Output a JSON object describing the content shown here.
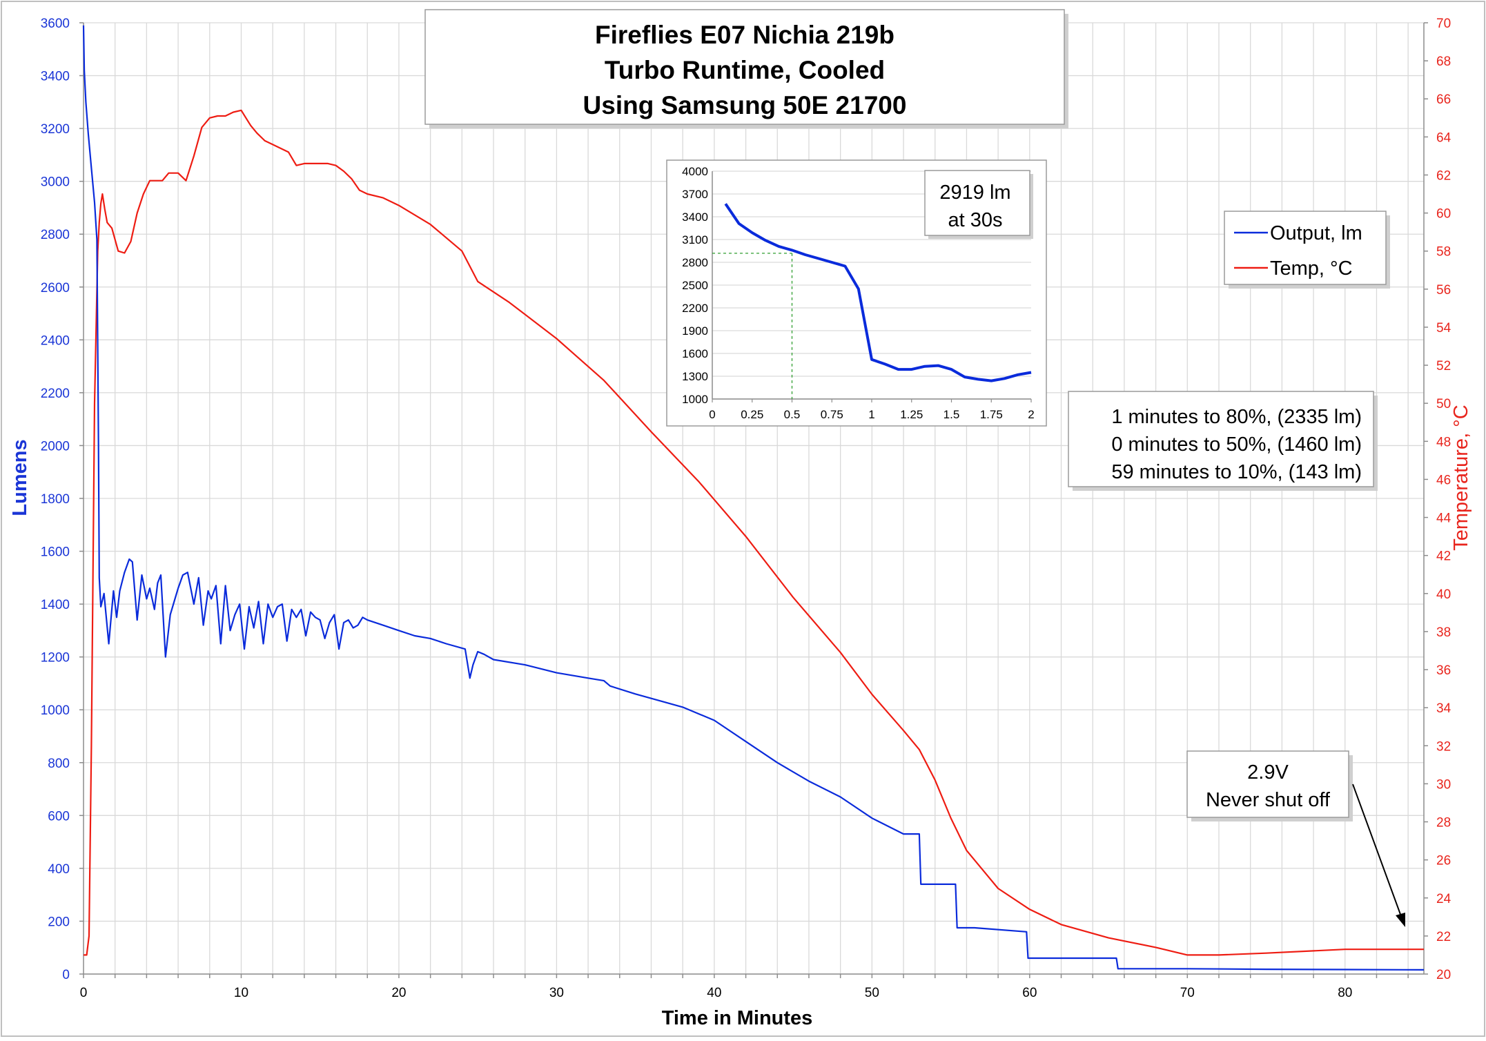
{
  "chart_data": [
    {
      "type": "line",
      "title": [
        "Fireflies E07 Nichia 219b",
        "Turbo Runtime, Cooled",
        "Using Samsung 50E 21700"
      ],
      "xlabel": "Time in Minutes",
      "ylabel": "Lumens",
      "y2label": "Temperature, °C",
      "xlim": [
        0,
        85
      ],
      "ylim": [
        0,
        3600
      ],
      "y2lim": [
        20,
        70
      ],
      "xticks": [
        0,
        10,
        20,
        30,
        40,
        50,
        60,
        70,
        80
      ],
      "yticks": [
        0,
        200,
        400,
        600,
        800,
        1000,
        1200,
        1400,
        1600,
        1800,
        2000,
        2200,
        2400,
        2600,
        2800,
        3000,
        3200,
        3400,
        3600
      ],
      "y2ticks": [
        20,
        22,
        24,
        26,
        28,
        30,
        32,
        34,
        36,
        38,
        40,
        42,
        44,
        46,
        48,
        50,
        52,
        54,
        56,
        58,
        60,
        62,
        64,
        66,
        68,
        70
      ],
      "grid": true,
      "legend_position": "top-right",
      "colors": {
        "output": "#0a2bdb",
        "temp": "#ee1c12",
        "axis_left": "#1a35d6",
        "axis_right": "#e8241c"
      },
      "series": [
        {
          "name": "Output, lm",
          "axis": "left",
          "x": [
            0,
            0.05,
            0.15,
            0.3,
            0.5,
            0.7,
            0.85,
            0.95,
            1.0,
            1.1,
            1.3,
            1.6,
            1.9,
            2.1,
            2.3,
            2.6,
            2.9,
            3.1,
            3.4,
            3.7,
            4.0,
            4.2,
            4.5,
            4.7,
            4.9,
            5.2,
            5.5,
            5.8,
            6.0,
            6.3,
            6.6,
            7.0,
            7.3,
            7.6,
            7.9,
            8.1,
            8.4,
            8.7,
            9.0,
            9.3,
            9.6,
            9.9,
            10.2,
            10.5,
            10.8,
            11.1,
            11.4,
            11.7,
            12.0,
            12.3,
            12.6,
            12.9,
            13.2,
            13.5,
            13.8,
            14.1,
            14.4,
            14.7,
            15.0,
            15.3,
            15.6,
            15.9,
            16.2,
            16.5,
            16.8,
            17.1,
            17.4,
            17.7,
            18.0,
            19,
            20,
            21,
            22,
            23,
            24.2,
            24.5,
            24.7,
            25.0,
            25.4,
            26,
            28,
            30,
            32,
            33.0,
            33.4,
            35,
            38,
            40,
            42,
            44,
            46,
            48,
            50,
            52,
            53.0,
            53.1,
            53.5,
            55.3,
            55.4,
            56.5,
            59.8,
            59.9,
            62,
            65.5,
            65.6,
            70,
            75,
            80,
            85
          ],
          "values": [
            3590,
            3420,
            3300,
            3180,
            3050,
            2920,
            2780,
            2000,
            1500,
            1390,
            1440,
            1250,
            1450,
            1350,
            1450,
            1520,
            1570,
            1560,
            1340,
            1510,
            1420,
            1460,
            1380,
            1480,
            1510,
            1200,
            1360,
            1420,
            1460,
            1510,
            1520,
            1400,
            1500,
            1320,
            1450,
            1420,
            1470,
            1250,
            1470,
            1300,
            1360,
            1400,
            1230,
            1390,
            1310,
            1410,
            1250,
            1400,
            1350,
            1390,
            1400,
            1260,
            1380,
            1350,
            1380,
            1280,
            1370,
            1350,
            1340,
            1270,
            1330,
            1360,
            1230,
            1330,
            1340,
            1310,
            1320,
            1350,
            1340,
            1320,
            1300,
            1280,
            1270,
            1250,
            1230,
            1120,
            1170,
            1220,
            1210,
            1190,
            1170,
            1140,
            1120,
            1110,
            1090,
            1060,
            1010,
            960,
            880,
            800,
            730,
            670,
            590,
            530,
            530,
            340,
            340,
            340,
            175,
            175,
            160,
            60,
            60,
            60,
            20,
            20,
            18,
            17,
            16
          ]
        },
        {
          "name": "Temp, °C",
          "axis": "right",
          "x": [
            0,
            0.2,
            0.35,
            0.5,
            0.7,
            0.9,
            1.0,
            1.1,
            1.2,
            1.35,
            1.5,
            1.8,
            2.2,
            2.6,
            3.0,
            3.4,
            3.8,
            4.2,
            4.6,
            5.0,
            5.4,
            6.0,
            6.5,
            7.0,
            7.5,
            8.0,
            8.5,
            9.0,
            9.5,
            10.0,
            10.3,
            10.6,
            11.0,
            11.5,
            12.0,
            12.5,
            13.0,
            13.5,
            14.0,
            14.5,
            15.0,
            15.5,
            16.0,
            16.5,
            17.0,
            17.5,
            18.0,
            19,
            20,
            22,
            24,
            25,
            27,
            30,
            33,
            36,
            39,
            42,
            45,
            48,
            50,
            52,
            53,
            54,
            55,
            56,
            58,
            60,
            62,
            65,
            68,
            70,
            72,
            75,
            80,
            85
          ],
          "values": [
            21.0,
            21.0,
            22.0,
            32.0,
            50.0,
            58.0,
            59.5,
            60.5,
            61.0,
            60.2,
            59.5,
            59.2,
            58.0,
            57.9,
            58.5,
            60.0,
            61.0,
            61.7,
            61.7,
            61.7,
            62.1,
            62.1,
            61.7,
            63.0,
            64.5,
            65.0,
            65.1,
            65.1,
            65.3,
            65.4,
            65.0,
            64.6,
            64.2,
            63.8,
            63.6,
            63.4,
            63.2,
            62.5,
            62.6,
            62.6,
            62.6,
            62.6,
            62.5,
            62.2,
            61.8,
            61.2,
            61.0,
            60.8,
            60.4,
            59.4,
            58.0,
            56.4,
            55.3,
            53.4,
            51.2,
            48.5,
            45.9,
            43.0,
            39.8,
            36.9,
            34.7,
            32.8,
            31.8,
            30.2,
            28.2,
            26.5,
            24.5,
            23.4,
            22.6,
            21.9,
            21.4,
            21.0,
            21.0,
            21.1,
            21.3,
            21.3
          ]
        }
      ]
    },
    {
      "type": "line",
      "inset": true,
      "xlim": [
        0,
        2
      ],
      "ylim": [
        1000,
        4000
      ],
      "xticks": [
        "0",
        "0.25",
        "0.5",
        "0.75",
        "1",
        "1.25",
        "1.5",
        "1.75",
        "2"
      ],
      "yticks": [
        1000,
        1300,
        1600,
        1900,
        2200,
        2500,
        2800,
        3100,
        3400,
        3700,
        4000
      ],
      "grid": true,
      "reference_point": {
        "x": 0.5,
        "y": 2919
      },
      "series": [
        {
          "name": "",
          "x": [
            0.083,
            0.167,
            0.25,
            0.333,
            0.417,
            0.5,
            0.583,
            0.667,
            0.75,
            0.833,
            0.917,
            1.0,
            1.083,
            1.167,
            1.25,
            1.333,
            1.417,
            1.5,
            1.583,
            1.667,
            1.75,
            1.833,
            1.917,
            2.0
          ],
          "values": [
            3570,
            3310,
            3190,
            3090,
            3010,
            2960,
            2900,
            2850,
            2800,
            2750,
            2450,
            1520,
            1460,
            1390,
            1390,
            1430,
            1440,
            1390,
            1290,
            1260,
            1240,
            1270,
            1320,
            1350
          ]
        }
      ]
    }
  ],
  "annotations": {
    "inset_note": [
      "2919 lm",
      "at 30s"
    ],
    "summary": [
      "1 minutes to 80%, (2335 lm)",
      "0 minutes to 50%, (1460 lm)",
      "59 minutes to 10%, (143 lm)"
    ],
    "shutoff_note": [
      "2.9V",
      "Never shut off"
    ]
  }
}
